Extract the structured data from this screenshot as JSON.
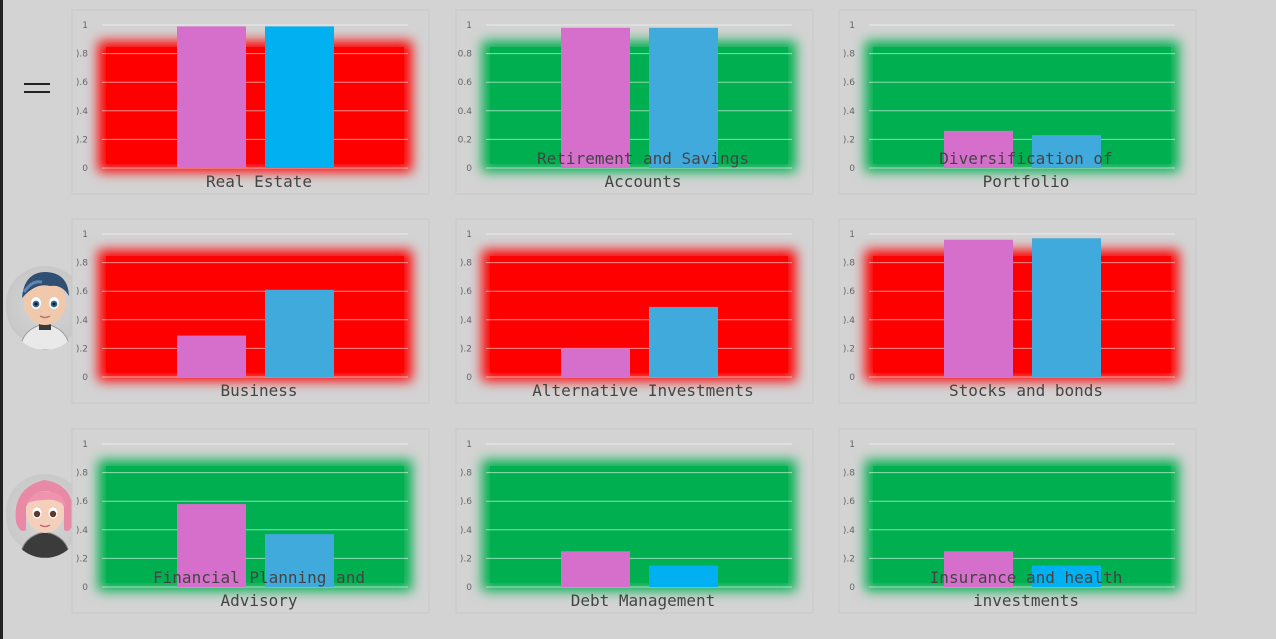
{
  "icons": {
    "menu": "hamburger-menu-icon",
    "assistant_boy": "robot-boy-avatar-icon",
    "assistant_girl": "pink-hair-girl-avatar-icon"
  },
  "colors": {
    "series_1": "#d66fcc",
    "series_2_options": [
      "#00b0f0",
      "#41aadd"
    ],
    "bg_risk_high": "#ff0000",
    "bg_risk_ok": "#00b050",
    "page_bg": "#d3d3d3"
  },
  "chart_data": [
    {
      "type": "bar",
      "label_lines": [
        "Real Estate"
      ],
      "background": "red",
      "ylim": [
        0,
        1
      ],
      "yticks": [
        "0",
        ").2",
        ").4",
        ").6",
        ").8",
        "1"
      ],
      "series": [
        {
          "values": [
            0.99
          ]
        },
        {
          "values": [
            0.99
          ]
        }
      ]
    },
    {
      "type": "bar",
      "label_lines": [
        "Retirement and Savings",
        "Accounts"
      ],
      "background": "green",
      "ylim": [
        0,
        1
      ],
      "yticks": [
        "0",
        "0.2",
        "0.4",
        "0.6",
        "0.8",
        "1"
      ],
      "series": [
        {
          "values": [
            0.98
          ]
        },
        {
          "values": [
            0.98
          ]
        }
      ]
    },
    {
      "type": "bar",
      "label_lines": [
        "Diversification of",
        "Portfolio"
      ],
      "background": "green",
      "ylim": [
        0,
        1
      ],
      "yticks": [
        "0",
        ").2",
        ").4",
        ").6",
        ").8",
        "1"
      ],
      "series": [
        {
          "values": [
            0.26
          ]
        },
        {
          "values": [
            0.23
          ]
        }
      ]
    },
    {
      "type": "bar",
      "label_lines": [
        "Business"
      ],
      "background": "red",
      "ylim": [
        0,
        1
      ],
      "yticks": [
        "0",
        ").2",
        ").4",
        ").6",
        ").8",
        "1"
      ],
      "series": [
        {
          "values": [
            0.29
          ]
        },
        {
          "values": [
            0.61
          ]
        }
      ]
    },
    {
      "type": "bar",
      "label_lines": [
        "Alternative Investments"
      ],
      "background": "red",
      "ylim": [
        0,
        1
      ],
      "yticks": [
        "0",
        ").2",
        ").4",
        ").6",
        ").8",
        "1"
      ],
      "series": [
        {
          "values": [
            0.2
          ]
        },
        {
          "values": [
            0.49
          ]
        }
      ]
    },
    {
      "type": "bar",
      "label_lines": [
        "Stocks and bonds"
      ],
      "background": "red",
      "ylim": [
        0,
        1
      ],
      "yticks": [
        "0",
        ").2",
        ").4",
        ").6",
        ").8",
        "1"
      ],
      "series": [
        {
          "values": [
            0.96
          ]
        },
        {
          "values": [
            0.97
          ]
        }
      ]
    },
    {
      "type": "bar",
      "label_lines": [
        "Financial Planning and",
        "Advisory"
      ],
      "background": "green",
      "ylim": [
        0,
        1
      ],
      "yticks": [
        "0",
        ").2",
        ").4",
        ").6",
        ").8",
        "1"
      ],
      "series": [
        {
          "values": [
            0.58
          ]
        },
        {
          "values": [
            0.37
          ]
        }
      ]
    },
    {
      "type": "bar",
      "label_lines": [
        "Debt Management"
      ],
      "background": "green",
      "ylim": [
        0,
        1
      ],
      "yticks": [
        "0",
        ").2",
        ").4",
        ").6",
        ").8",
        "1"
      ],
      "series": [
        {
          "values": [
            0.25
          ]
        },
        {
          "values": [
            0.15
          ]
        }
      ]
    },
    {
      "type": "bar",
      "label_lines": [
        "Insurance and health",
        "investments"
      ],
      "background": "green",
      "ylim": [
        0,
        1
      ],
      "yticks": [
        "0",
        ").2",
        ").4",
        ").6",
        ").8",
        "1"
      ],
      "series": [
        {
          "values": [
            0.25
          ]
        },
        {
          "values": [
            0.15
          ]
        }
      ]
    }
  ]
}
